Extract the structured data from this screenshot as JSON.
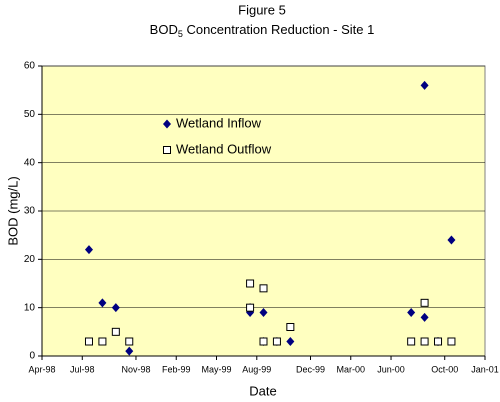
{
  "chart_data": {
    "type": "scatter",
    "title": "Figure 5",
    "subtitle": [
      "BOD",
      "5",
      " Concentration Reduction - Site 1"
    ],
    "xlabel": "Date",
    "ylabel": "BOD  (mg/L)",
    "xlim": [
      "1998-04",
      "2001-01"
    ],
    "xticks": [
      {
        "value": "1998-04",
        "label": "Apr-98"
      },
      {
        "value": "1998-07",
        "label": "Jul-98"
      },
      {
        "value": "1998-11",
        "label": "Nov-98"
      },
      {
        "value": "1999-02",
        "label": "Feb-99"
      },
      {
        "value": "1999-05",
        "label": "May-99"
      },
      {
        "value": "1999-08",
        "label": "Aug-99"
      },
      {
        "value": "1999-12",
        "label": "Dec-99"
      },
      {
        "value": "2000-03",
        "label": "Mar-00"
      },
      {
        "value": "2000-06",
        "label": "Jun-00"
      },
      {
        "value": "2000-10",
        "label": "Oct-00"
      },
      {
        "value": "2001-01",
        "label": "Jan-01"
      }
    ],
    "ylim": [
      0,
      60
    ],
    "yticks": [
      0,
      10,
      20,
      30,
      40,
      50,
      60
    ],
    "grid": true,
    "series": [
      {
        "name": "Wetland Inflow",
        "color": "#000080",
        "marker": "diamond",
        "x": [
          "1998-07",
          "1998-08",
          "1998-09",
          "1998-10",
          "1999-07",
          "1999-07",
          "1999-08",
          "1999-08",
          "1999-09",
          "1999-10",
          "2000-07",
          "2000-08",
          "2000-08",
          "2000-09",
          "2000-09",
          "2000-10"
        ],
        "values": [
          22,
          11,
          10,
          1,
          10,
          9,
          9,
          3,
          3,
          3,
          9,
          56,
          8,
          3,
          3,
          24
        ]
      },
      {
        "name": "Wetland Outflow",
        "color": "#000000",
        "marker": "square",
        "x": [
          "1998-07",
          "1998-08",
          "1998-09",
          "1998-10",
          "1999-07",
          "1999-07",
          "1999-08",
          "1999-08",
          "1999-09",
          "1999-10",
          "2000-07",
          "2000-08",
          "2000-08",
          "2000-09",
          "2000-09",
          "2000-10"
        ],
        "values": [
          3,
          3,
          5,
          3,
          10,
          15,
          14,
          3,
          3,
          6,
          3,
          3,
          11,
          3,
          3,
          3
        ]
      }
    ]
  }
}
